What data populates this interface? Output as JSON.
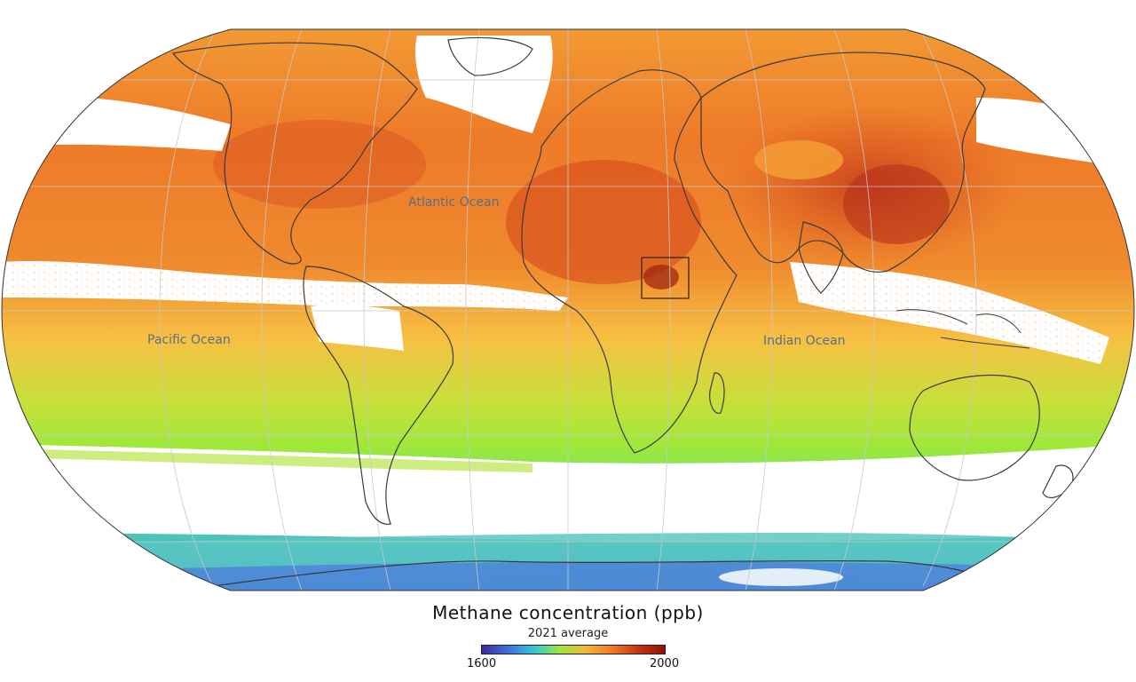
{
  "labels": {
    "atlantic": "Atlantic Ocean",
    "pacific": "Pacific Ocean",
    "indian": "Indian Ocean"
  },
  "legend": {
    "title": "Methane concentration (ppb)",
    "subtitle": "2021 average",
    "min": "1600",
    "max": "2000",
    "colorscale": [
      "#3a2a9e",
      "#3f6fe0",
      "#35c6d8",
      "#9ee83a",
      "#f4b43c",
      "#f07a26",
      "#c83214",
      "#8e1206"
    ]
  },
  "colors": {
    "high": "#d94a1a",
    "mid_high": "#f08a30",
    "mid": "#f4b040",
    "mid_low": "#a6e23c",
    "low": "#40c8c0",
    "lowest": "#4a5fd6",
    "no_data": "#ffffff",
    "coastline": "#3a3a3a",
    "graticule": "#b8b8b8"
  }
}
